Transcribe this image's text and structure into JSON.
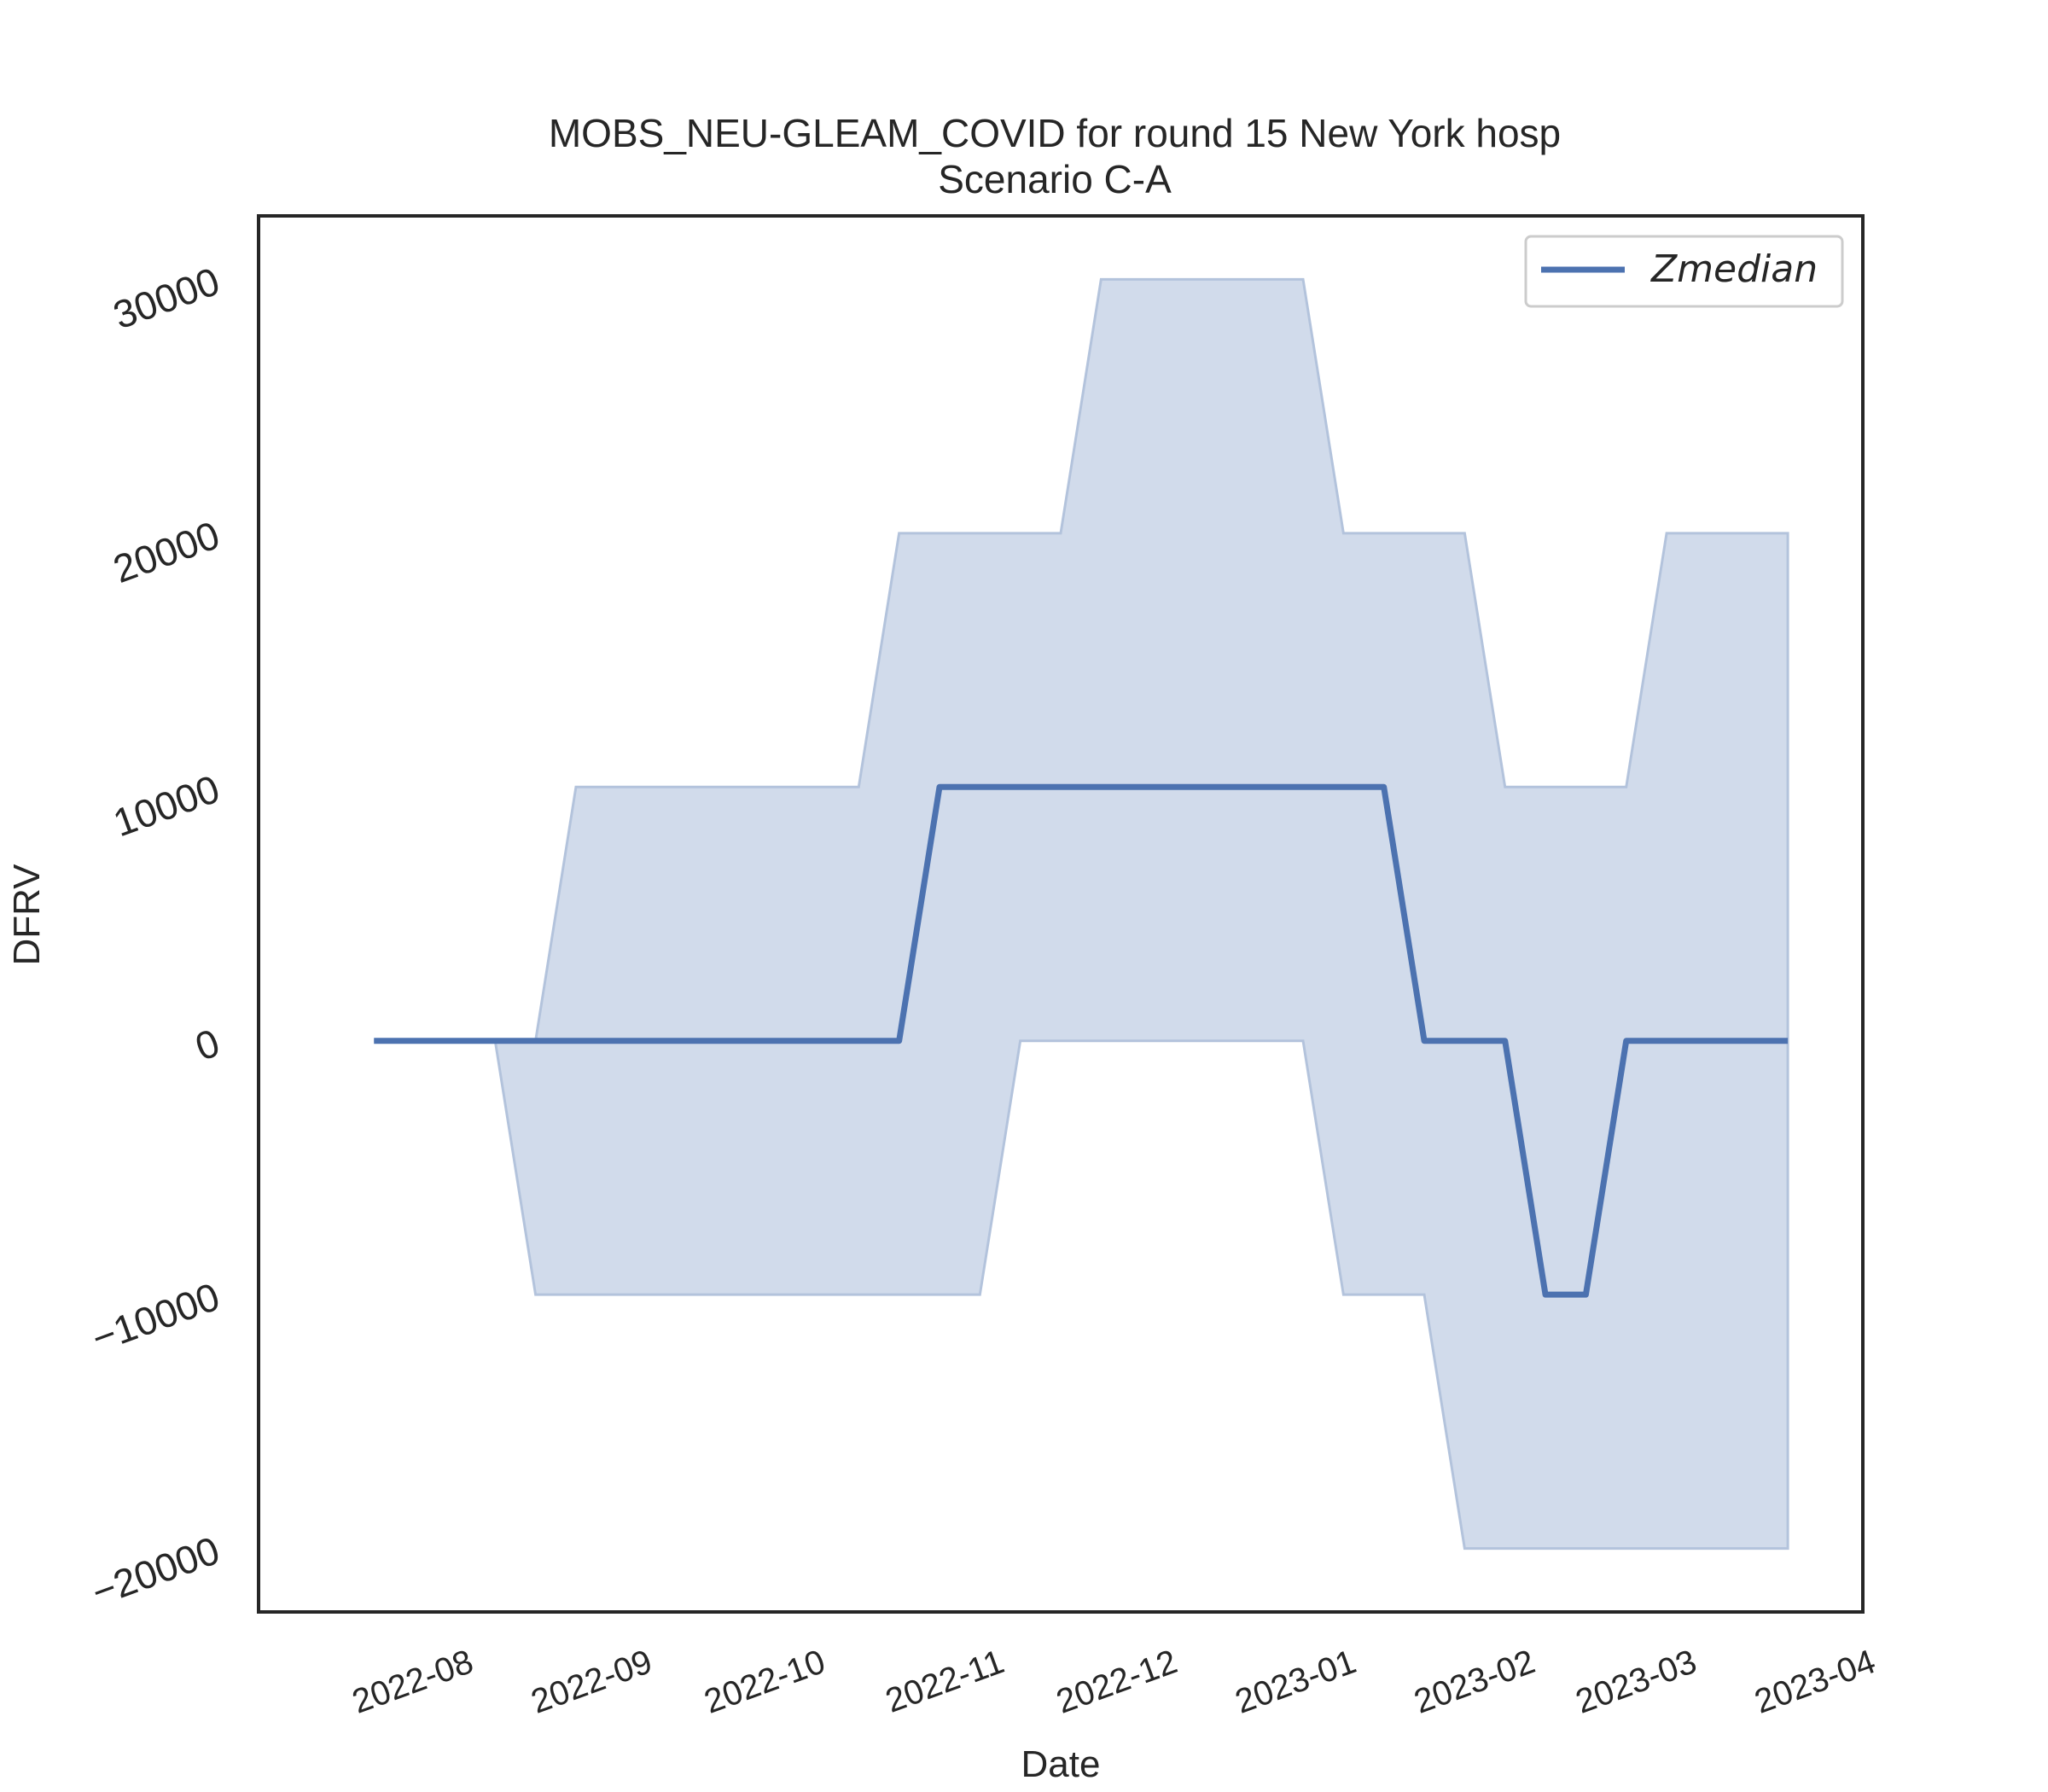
{
  "chart_data": {
    "type": "line",
    "title": "MOBS_NEU-GLEAM_COVID for round 15 New York hosp",
    "subtitle": "Scenario C-A",
    "xlabel": "Date",
    "ylabel": "DFRV",
    "x_ticks": [
      "2022-08",
      "2022-09",
      "2022-10",
      "2022-11",
      "2022-12",
      "2023-01",
      "2023-02",
      "2023-03",
      "2023-04"
    ],
    "y_ticks": [
      -20000,
      -10000,
      0,
      10000,
      20000,
      30000
    ],
    "xlim": [
      "2022-07-03",
      "2023-04-07"
    ],
    "ylim": [
      -22500,
      32500
    ],
    "grid": false,
    "legend_position": "top-right",
    "colors": {
      "line": "#4c72b0",
      "band": "#d1dbeb",
      "band_edge": "#b3c3dc",
      "axes": "#262626"
    },
    "series": [
      {
        "name": "Zmedian",
        "kind": "line",
        "x": [
          "2022-07-23",
          "2022-08-27",
          "2022-09-03",
          "2022-10-15",
          "2022-10-22",
          "2022-10-29",
          "2022-11-26",
          "2022-12-03",
          "2023-01-07",
          "2023-01-14",
          "2023-01-21",
          "2023-01-28",
          "2023-02-04",
          "2023-02-11",
          "2023-02-18",
          "2023-02-25",
          "2023-03-04",
          "2023-03-11",
          "2023-03-18",
          "2023-03-25"
        ],
        "values": [
          0,
          0,
          0,
          0,
          0,
          10000,
          10000,
          10000,
          10000,
          10000,
          0,
          0,
          0,
          -10000,
          -10000,
          0,
          0,
          0,
          0,
          0
        ]
      },
      {
        "name": "lower",
        "kind": "band_lower",
        "x": [
          "2022-07-23",
          "2022-08-13",
          "2022-08-20",
          "2022-09-03",
          "2022-10-15",
          "2022-10-22",
          "2022-11-05",
          "2022-11-12",
          "2022-11-26",
          "2022-12-03",
          "2022-12-31",
          "2023-01-07",
          "2023-01-14",
          "2023-01-21",
          "2023-01-28",
          "2023-02-04",
          "2023-02-11",
          "2023-02-18",
          "2023-02-25",
          "2023-03-04",
          "2023-03-11",
          "2023-03-18",
          "2023-03-25"
        ],
        "values": [
          0,
          0,
          -10000,
          -10000,
          -10000,
          -10000,
          -10000,
          0,
          0,
          0,
          0,
          -10000,
          -10000,
          -10000,
          -20000,
          -20000,
          -20000,
          -20000,
          -20000,
          -20000,
          -20000,
          -20000,
          -20000
        ]
      },
      {
        "name": "upper",
        "kind": "band_upper",
        "x": [
          "2022-07-23",
          "2022-08-20",
          "2022-08-27",
          "2022-10-15",
          "2022-10-22",
          "2022-11-19",
          "2022-11-26",
          "2022-12-31",
          "2023-01-07",
          "2023-01-28",
          "2023-02-04",
          "2023-02-25",
          "2023-03-04",
          "2023-03-11",
          "2023-03-18",
          "2023-03-25"
        ],
        "values": [
          0,
          0,
          10000,
          10000,
          20000,
          20000,
          30000,
          30000,
          20000,
          20000,
          10000,
          10000,
          20000,
          20000,
          20000,
          20000
        ]
      }
    ]
  }
}
